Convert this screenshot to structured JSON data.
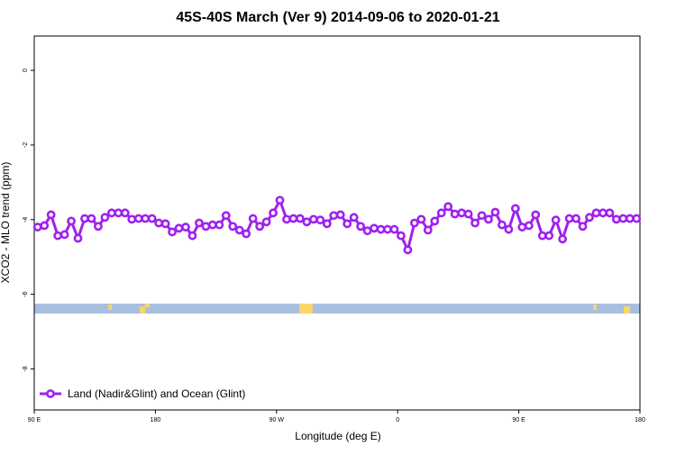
{
  "chart_data": {
    "type": "line",
    "title": "45S-40S March (Ver 9)   2014-09-06 to 2020-01-21",
    "x_label": "Longitude (deg E)",
    "y_label": "XCO2 - MLO trend (ppm)",
    "xlim": [
      90,
      540
    ],
    "ylim": [
      -9.1,
      0.92
    ],
    "xticks": [
      {
        "value": 90,
        "label": "90 E"
      },
      180,
      {
        "value": 270,
        "label": "90 W"
      },
      {
        "value": 360,
        "label": "0"
      },
      {
        "value": 450,
        "label": "90 E"
      },
      {
        "value": 540,
        "label": "180"
      }
    ],
    "yticks": [
      -8,
      -6,
      -4,
      -2,
      0
    ],
    "x": [
      92.5,
      97.5,
      102.5,
      107.5,
      112.5,
      117.5,
      122.5,
      127.5,
      132.5,
      137.5,
      142.5,
      147.5,
      152.5,
      157.5,
      162.5,
      167.5,
      172.5,
      177.5,
      182.5,
      187.5,
      192.5,
      197.5,
      202.5,
      207.5,
      212.5,
      217.5,
      222.5,
      227.5,
      232.5,
      237.5,
      242.5,
      247.5,
      252.5,
      257.5,
      262.5,
      267.5,
      272.5,
      277.5,
      282.5,
      287.5,
      292.5,
      297.5,
      302.5,
      307.5,
      312.5,
      317.5,
      322.5,
      327.5,
      332.5,
      337.5,
      342.5,
      347.5,
      352.5,
      357.5,
      362.5,
      367.5,
      372.5,
      377.5,
      382.5,
      387.5,
      392.5,
      397.5,
      402.5,
      407.5,
      412.5,
      417.5,
      422.5,
      427.5,
      432.5,
      437.5,
      442.5,
      447.5,
      452.5,
      457.5,
      462.5,
      467.5,
      472.5,
      477.5,
      482.5,
      487.5,
      492.5,
      497.5,
      502.5,
      507.5,
      512.5,
      517.5,
      522.5,
      527.5,
      532.5,
      537.5
    ],
    "series": [
      {
        "name": "Land (Nadir&Glint) and Ocean (Glint)",
        "color": "#a020f0",
        "values": [
          -4.2,
          -4.16,
          -3.87,
          -4.43,
          -4.4,
          -4.04,
          -4.5,
          -3.97,
          -3.97,
          -4.18,
          -3.94,
          -3.82,
          -3.82,
          -3.82,
          -3.99,
          -3.97,
          -3.97,
          -3.97,
          -4.09,
          -4.11,
          -4.33,
          -4.23,
          -4.2,
          -4.43,
          -4.09,
          -4.18,
          -4.14,
          -4.14,
          -3.89,
          -4.18,
          -4.28,
          -4.38,
          -3.97,
          -4.18,
          -4.06,
          -3.82,
          -3.48,
          -3.99,
          -3.97,
          -3.97,
          -4.06,
          -3.99,
          -4.01,
          -4.11,
          -3.89,
          -3.87,
          -4.11,
          -3.94,
          -4.18,
          -4.3,
          -4.23,
          -4.26,
          -4.26,
          -4.26,
          -4.43,
          -4.81,
          -4.09,
          -3.99,
          -4.28,
          -4.04,
          -3.82,
          -3.65,
          -3.85,
          -3.82,
          -3.85,
          -4.09,
          -3.89,
          -3.99,
          -3.8,
          -4.14,
          -4.26,
          -3.7,
          -4.2,
          -4.16,
          -3.87,
          -4.43,
          -4.43,
          -4.01,
          -4.52,
          -3.97,
          -3.97,
          -4.18,
          -3.94,
          -3.82,
          -3.82,
          -3.82,
          -3.99,
          -3.97,
          -3.97,
          -3.97
        ]
      }
    ],
    "legend": "bottom-left"
  }
}
